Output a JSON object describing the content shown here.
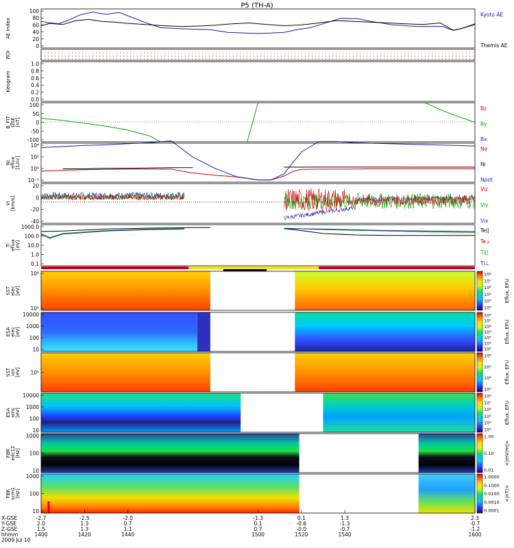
{
  "title": "P5 (TH-A)",
  "panels": [
    {
      "id": "ae",
      "ylabel": "AE Index",
      "yticks": [
        "100",
        "80",
        "60",
        "40",
        "20",
        "0"
      ],
      "right": [
        {
          "text": "Kyoto AE",
          "color": "#1a1aa0"
        },
        {
          "text": "Themis AE",
          "color": "#000000"
        }
      ]
    },
    {
      "id": "roi",
      "ylabel": "ROI",
      "yticks": [],
      "right": []
    },
    {
      "id": "keogram",
      "ylabel": "Keogram",
      "yticks": [
        "1.0",
        "0.8",
        "0.6",
        "0.4",
        "0.2",
        "0.0"
      ],
      "right": []
    },
    {
      "id": "bfit",
      "ylabel": "B_FIT\nGSE\n[nT]",
      "yticks": [
        "100",
        "50",
        "0",
        "-50",
        "-100"
      ],
      "right": [
        {
          "text": "Bz",
          "color": "#cc0000"
        },
        {
          "text": "By",
          "color": "#00aa00"
        },
        {
          "text": "Bx",
          "color": "#1a1ab0"
        }
      ]
    },
    {
      "id": "ni",
      "ylabel": "Ni\neflux\n[1/cc]",
      "yticks": [
        "10⁴",
        "10²",
        "10⁰",
        "10⁻²"
      ],
      "right": [
        {
          "text": "Ne",
          "color": "#cc0000"
        },
        {
          "text": "Ni",
          "color": "#000000"
        },
        {
          "text": "Npot",
          "color": "#1a1ab0"
        }
      ]
    },
    {
      "id": "vi",
      "ylabel": "Vi\n[km/s]",
      "yticks": [
        "20",
        "0",
        "-20",
        "-40"
      ],
      "right": [
        {
          "text": "Viz",
          "color": "#cc0000"
        },
        {
          "text": "Viy",
          "color": "#00aa00"
        },
        {
          "text": "Vix",
          "color": "#1a1ab0"
        }
      ]
    },
    {
      "id": "ti",
      "ylabel": "Ti\neflux\n[eV]",
      "yticks": [
        "1000.0",
        "100.0",
        "10.0",
        "1.0",
        "0.1"
      ],
      "right": [
        {
          "text": "Te||",
          "color": "#000000"
        },
        {
          "text": "Te⊥",
          "color": "#cc0000"
        },
        {
          "text": "Ti||",
          "color": "#00aa00"
        },
        {
          "text": "Ti⊥",
          "color": "#1a1ab0"
        }
      ]
    },
    {
      "id": "sst_e",
      "ylabel": "SST\nelec\n[eV]",
      "yticks": [
        "10⁶",
        "10⁵"
      ],
      "right": []
    },
    {
      "id": "esa_e",
      "ylabel": "ESA\nelec\n[eV]",
      "yticks": [
        "10000",
        "1000",
        "100",
        "10"
      ],
      "right": []
    },
    {
      "id": "sst_i",
      "ylabel": "SST\nion\n[eV]",
      "yticks": [
        "10⁵"
      ],
      "right": []
    },
    {
      "id": "esa_i",
      "ylabel": "ESA\nions\n[eV]",
      "yticks": [
        "10000",
        "1000",
        "100",
        "10"
      ],
      "right": []
    },
    {
      "id": "fbk_e",
      "ylabel": "FBK\nedc12\n[Hz]",
      "yticks": [
        "1000",
        "100",
        "10"
      ],
      "right": []
    },
    {
      "id": "fbk_s",
      "ylabel": "FBK\nscm1\n[Hz]",
      "yticks": [
        "1000",
        "100",
        "10"
      ],
      "right": []
    }
  ],
  "colorbars": [
    {
      "panel": "sst_e",
      "label": "Eflux, EFU",
      "ticks": [
        "10⁸",
        "10⁷",
        "10⁶",
        "10⁵",
        "10⁴",
        "10³"
      ]
    },
    {
      "panel": "esa_e",
      "label": "Eflux, EFU",
      "ticks": [
        "10⁸",
        "10⁷",
        "10⁶",
        "10⁵",
        "10⁴",
        "10³",
        "10²"
      ]
    },
    {
      "panel": "sst_i",
      "label": "Eflux, EFU",
      "ticks": [
        "10⁶",
        "10⁵",
        "10⁴",
        "10³"
      ]
    },
    {
      "panel": "esa_i",
      "label": "Eflux, EFU",
      "ticks": [
        "10⁸",
        "10⁷",
        "10⁶",
        "10⁵",
        "10⁴",
        "10³"
      ]
    },
    {
      "panel": "fbk_e",
      "label": "<|mV/m|>",
      "ticks": [
        "1.00",
        "0.10",
        "0.01"
      ]
    },
    {
      "panel": "fbk_s",
      "label": "<|nT|>",
      "ticks": [
        "1.0000",
        "0.1000",
        "0.0100",
        "0.0010",
        "0.0001"
      ]
    }
  ],
  "footer": {
    "row_labels": [
      "X-GSE",
      "Y-GSE",
      "Z-GSE",
      "hhmm",
      "2009 Jul 10"
    ],
    "columns": [
      [
        "-2.7",
        "2.0",
        "1.5",
        "1400"
      ],
      [
        "-2.5",
        "1.3",
        "1.3",
        "1420"
      ],
      [
        "-2.0",
        "0.7",
        "1.1",
        "1440"
      ],
      [
        "-1.3",
        "0.1",
        "0.7",
        "1500"
      ],
      [
        "0.1",
        "-0.6",
        "-0.0",
        "1520"
      ],
      [
        "1.3",
        "-1.3",
        "-0.7",
        "1540"
      ],
      [
        "2.3",
        "-0.7",
        "-1.2",
        "1600"
      ]
    ]
  },
  "chart_data": {
    "type": "line",
    "title": "P5 (TH-A)",
    "xlabel": "hhmm",
    "x_ticks": [
      "1400",
      "1420",
      "1440",
      "1500",
      "1520",
      "1540",
      "1600"
    ],
    "xlim": [
      1400,
      1600
    ],
    "series": [
      {
        "name": "Kyoto AE",
        "color": "#1a1aa0",
        "panel": "ae",
        "x": [
          1400,
          1403,
          1408,
          1412,
          1418,
          1424,
          1430,
          1436,
          1442,
          1448,
          1455,
          1462,
          1470,
          1478,
          1486,
          1494,
          1500,
          1506,
          1512,
          1518,
          1524,
          1530,
          1538,
          1546,
          1552,
          1558,
          1562,
          1566,
          1570,
          1575,
          1580,
          1585,
          1590,
          1594,
          1600
        ],
        "y": [
          68,
          65,
          62,
          70,
          85,
          92,
          86,
          91,
          78,
          65,
          52,
          50,
          48,
          47,
          40,
          38,
          37,
          38,
          40,
          47,
          52,
          62,
          76,
          75,
          68,
          63,
          59,
          58,
          56,
          55,
          55,
          55,
          45,
          50,
          62
        ]
      },
      {
        "name": "Themis AE",
        "color": "#000000",
        "panel": "ae",
        "x": [
          1400,
          1404,
          1410,
          1416,
          1422,
          1428,
          1434,
          1440,
          1448,
          1456,
          1464,
          1472,
          1480,
          1488,
          1496,
          1504,
          1512,
          1520,
          1528,
          1536,
          1544,
          1552,
          1560,
          1568,
          1576,
          1584,
          1590,
          1594,
          1600
        ],
        "y": [
          57,
          63,
          60,
          70,
          73,
          68,
          66,
          63,
          60,
          57,
          55,
          56,
          58,
          62,
          64,
          60,
          57,
          59,
          64,
          70,
          68,
          66,
          64,
          62,
          60,
          64,
          45,
          50,
          60
        ]
      },
      {
        "name": "Ne",
        "color": "#cc0000",
        "panel": "ni",
        "x": [
          1400,
          1410,
          1420,
          1430,
          1440,
          1450,
          1460,
          1470,
          1480,
          1490,
          1500,
          1506,
          1512,
          1516,
          1520,
          1530,
          1540,
          1550,
          1560,
          1570,
          1580,
          1590,
          1600
        ],
        "y": [
          0.0,
          0.15,
          0.25,
          0.3,
          0.35,
          0.35,
          0.35,
          -0.35,
          -0.75,
          -1.05,
          -1.6,
          -1.6,
          -0.9,
          -0.1,
          0.3,
          0.35,
          0.35,
          0.4,
          0.4,
          0.4,
          0.4,
          0.4,
          0.4
        ]
      },
      {
        "name": "Ni",
        "color": "#000000",
        "panel": "ni",
        "x": [
          1410,
          1420,
          1430,
          1440,
          1450,
          1460,
          1470,
          1500,
          1506,
          1512,
          1520,
          1530,
          1540,
          1550,
          1560,
          1570,
          1580,
          1590,
          1600
        ],
        "y": [
          0.4,
          0.4,
          0.5,
          0.5,
          0.55,
          0.6,
          0.6,
          null,
          null,
          0.7,
          0.7,
          0.72,
          0.72,
          0.72,
          0.72,
          0.7,
          0.7,
          0.7,
          0.7
        ]
      },
      {
        "name": "Npot",
        "color": "#1a1ab0",
        "panel": "ni",
        "x": [
          1400,
          1410,
          1420,
          1430,
          1440,
          1450,
          1460,
          1470,
          1480,
          1490,
          1500,
          1506,
          1512,
          1516,
          1520,
          1528,
          1536,
          1544,
          1552,
          1560,
          1570,
          1580,
          1590,
          1600
        ],
        "y": [
          4.2,
          4.4,
          4.6,
          4.7,
          4.9,
          5.1,
          5.4,
          2.5,
          0.5,
          -1.0,
          -1.6,
          -1.6,
          -0.5,
          1.5,
          3.4,
          5.3,
          5.3,
          5.1,
          5.0,
          4.9,
          4.8,
          4.7,
          4.6,
          4.5
        ]
      },
      {
        "name": "Bz",
        "color": "#cc0000",
        "panel": "bfit",
        "x": [],
        "y": []
      },
      {
        "name": "By",
        "color": "#00aa00",
        "panel": "bfit",
        "x": [
          1400,
          1410,
          1420,
          1430,
          1440,
          1450,
          1455,
          null,
          1495,
          1500,
          null,
          1577,
          1585,
          1592,
          1600
        ],
        "y": [
          20,
          10,
          -5,
          -20,
          -40,
          -70,
          -100,
          null,
          -100,
          100,
          null,
          100,
          60,
          30,
          0
        ]
      },
      {
        "name": "Bx",
        "color": "#1a1ab0",
        "panel": "bfit",
        "x": [],
        "y": []
      }
    ]
  }
}
